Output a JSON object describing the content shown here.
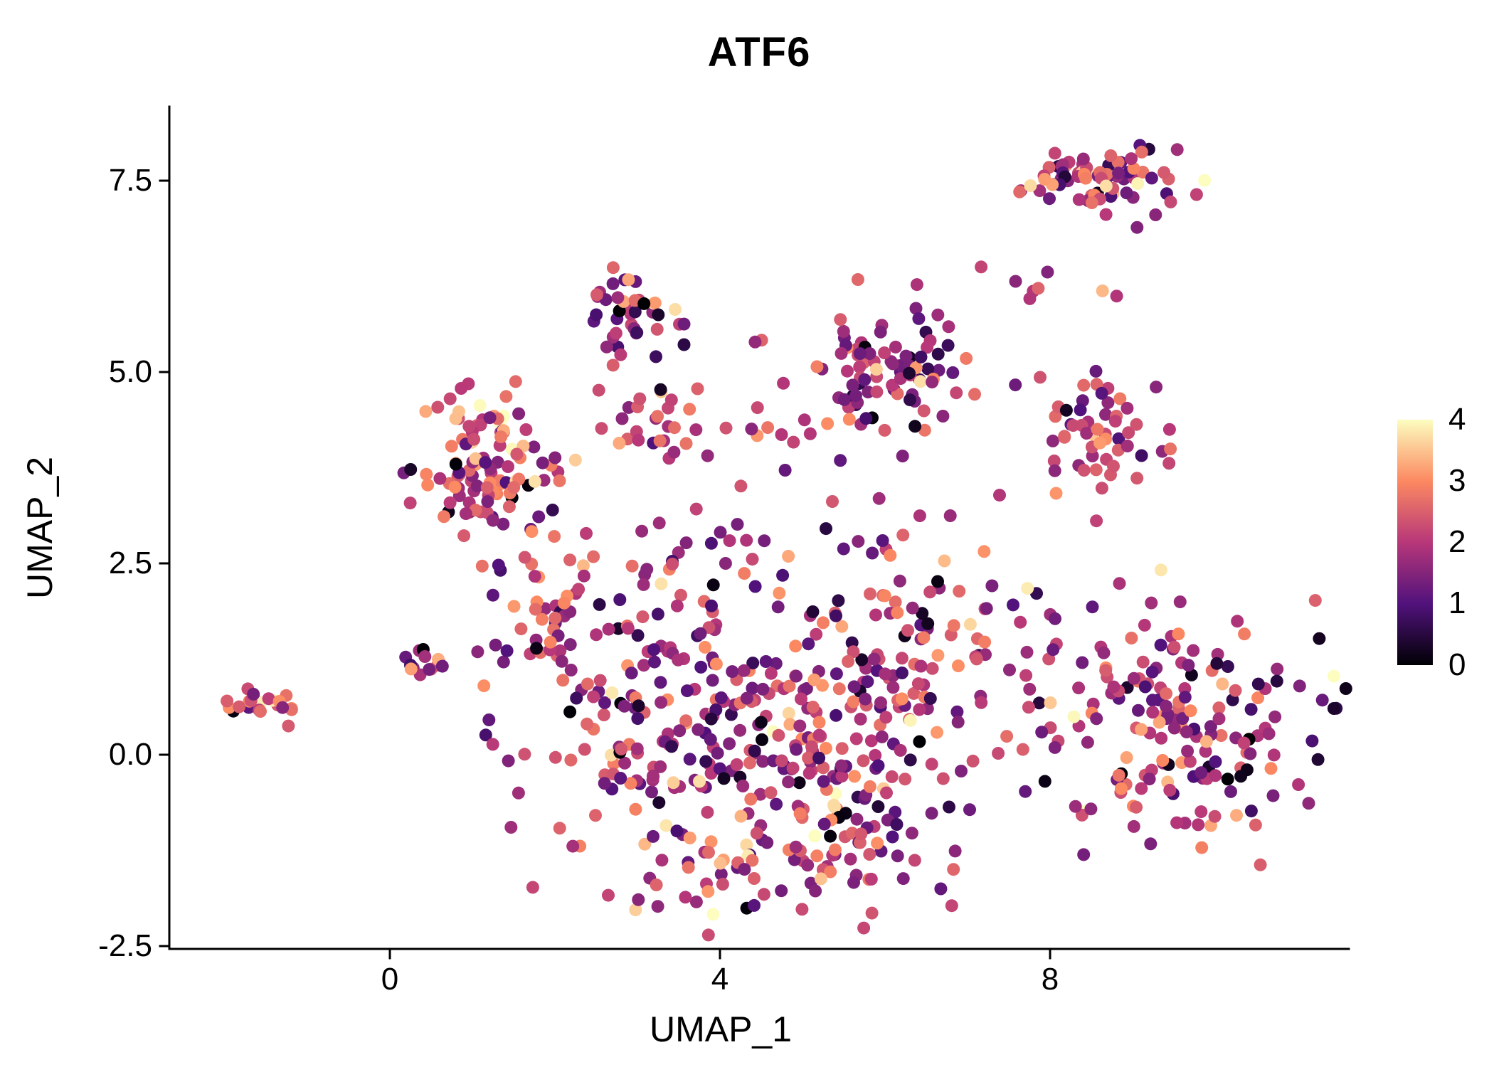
{
  "title": "ATF6",
  "colors": {
    "background": "#ffffff",
    "axis": "#000000",
    "text": "#000000"
  },
  "chart_data": {
    "type": "scatter",
    "title": "ATF6",
    "xlabel": "UMAP_1",
    "ylabel": "UMAP_2",
    "xlim": [
      -2.7,
      11.7
    ],
    "ylim": [
      -2.6,
      8.5
    ],
    "grid": false,
    "x_ticks": {
      "values": [
        0,
        4,
        8
      ],
      "labels": [
        "0",
        "4",
        "8"
      ]
    },
    "y_ticks": {
      "values": [
        -2.5,
        0,
        2.5,
        5,
        7.5
      ],
      "labels": [
        "-2.5",
        "0.0",
        "2.5",
        "5.0",
        "7.5"
      ]
    },
    "legend": {
      "type": "colorbar",
      "position": "right",
      "vmin": 0,
      "vmax": 4,
      "ticks": [
        "4",
        "3",
        "2",
        "1",
        "0"
      ],
      "colormap_name": "magma",
      "colormap_stops": [
        "#000004",
        "#51127c",
        "#b73779",
        "#fc8961",
        "#fcfdbf"
      ]
    },
    "point_radius_px": 9,
    "clusters": [
      {
        "name": "far_left",
        "cx": -1.5,
        "cy": 0.65,
        "sx": 0.22,
        "sy": 0.12,
        "n": 22,
        "v_mean": 2.4,
        "v_sd": 0.7
      },
      {
        "name": "left_small",
        "cx": 0.45,
        "cy": 1.25,
        "sx": 0.18,
        "sy": 0.15,
        "n": 14,
        "v_mean": 2.0,
        "v_sd": 0.6
      },
      {
        "name": "left_main",
        "cx": 1.2,
        "cy": 3.8,
        "sx": 0.45,
        "sy": 0.55,
        "n": 110,
        "v_mean": 2.3,
        "v_sd": 0.75
      },
      {
        "name": "top_mid",
        "cx": 2.95,
        "cy": 5.7,
        "sx": 0.28,
        "sy": 0.3,
        "n": 40,
        "v_mean": 1.8,
        "v_sd": 0.85
      },
      {
        "name": "mid_band",
        "cx": 3.6,
        "cy": 4.25,
        "sx": 0.8,
        "sy": 0.25,
        "n": 35,
        "v_mean": 2.0,
        "v_sd": 0.7
      },
      {
        "name": "upper_center",
        "cx": 6.0,
        "cy": 5.1,
        "sx": 0.55,
        "sy": 0.55,
        "n": 90,
        "v_mean": 1.7,
        "v_sd": 0.7
      },
      {
        "name": "right_mid",
        "cx": 8.6,
        "cy": 4.25,
        "sx": 0.4,
        "sy": 0.38,
        "n": 55,
        "v_mean": 2.1,
        "v_sd": 0.7
      },
      {
        "name": "top_right",
        "cx": 8.6,
        "cy": 7.55,
        "sx": 0.5,
        "sy": 0.22,
        "n": 75,
        "v_mean": 2.0,
        "v_sd": 0.85
      },
      {
        "name": "top_right_tail",
        "cx": 8.3,
        "cy": 6.5,
        "sx": 0.5,
        "sy": 0.4,
        "n": 10,
        "v_mean": 2.2,
        "v_sd": 0.7
      },
      {
        "name": "sparse_top",
        "cx": 4.6,
        "cy": 4.9,
        "sx": 0.5,
        "sy": 0.3,
        "n": 6,
        "v_mean": 1.5,
        "v_sd": 0.9
      },
      {
        "name": "center_west",
        "cx": 3.3,
        "cy": 0.6,
        "sx": 1.0,
        "sy": 0.85,
        "n": 160,
        "v_mean": 1.9,
        "v_sd": 0.75
      },
      {
        "name": "center_east",
        "cx": 5.4,
        "cy": 0.1,
        "sx": 0.95,
        "sy": 0.95,
        "n": 170,
        "v_mean": 1.9,
        "v_sd": 0.75
      },
      {
        "name": "center_north",
        "cx": 6.6,
        "cy": 1.7,
        "sx": 0.55,
        "sy": 0.6,
        "n": 60,
        "v_mean": 1.8,
        "v_sd": 0.75
      },
      {
        "name": "sparse_mid",
        "cx": 4.5,
        "cy": 2.6,
        "sx": 1.3,
        "sy": 0.5,
        "n": 40,
        "v_mean": 1.8,
        "v_sd": 0.8
      },
      {
        "name": "left_bridge",
        "cx": 2.0,
        "cy": 1.9,
        "sx": 0.45,
        "sy": 0.5,
        "n": 45,
        "v_mean": 2.0,
        "v_sd": 0.75
      },
      {
        "name": "bottom_arc",
        "cx": 4.6,
        "cy": -1.3,
        "sx": 1.1,
        "sy": 0.45,
        "n": 90,
        "v_mean": 2.2,
        "v_sd": 0.75
      },
      {
        "name": "right_bridge",
        "cx": 8.0,
        "cy": 1.0,
        "sx": 0.35,
        "sy": 0.6,
        "n": 15,
        "v_mean": 2.2,
        "v_sd": 0.7
      },
      {
        "name": "right_main",
        "cx": 9.7,
        "cy": 0.4,
        "sx": 0.78,
        "sy": 0.82,
        "n": 170,
        "v_mean": 1.8,
        "v_sd": 0.8
      }
    ]
  }
}
